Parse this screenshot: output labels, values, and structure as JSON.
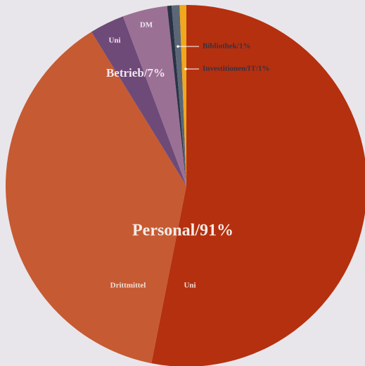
{
  "chart_data": {
    "type": "pie",
    "categories": [
      "Uni",
      "Drittmittel",
      "Uni",
      "DM",
      null,
      null,
      null
    ],
    "values": [
      53.1,
      38.1,
      3.1,
      4.0,
      0.4,
      0.7,
      0.6
    ],
    "colors": [
      "#b5300f",
      "#c65a33",
      "#6e4a78",
      "#9b7095",
      "#2a3346",
      "#5b6677",
      "#f0a81c"
    ],
    "annotations": [
      "Personal/91%",
      "Betrieb/7%",
      "Bibliothek/1%",
      "Investitionen/IT/1%"
    ]
  }
}
